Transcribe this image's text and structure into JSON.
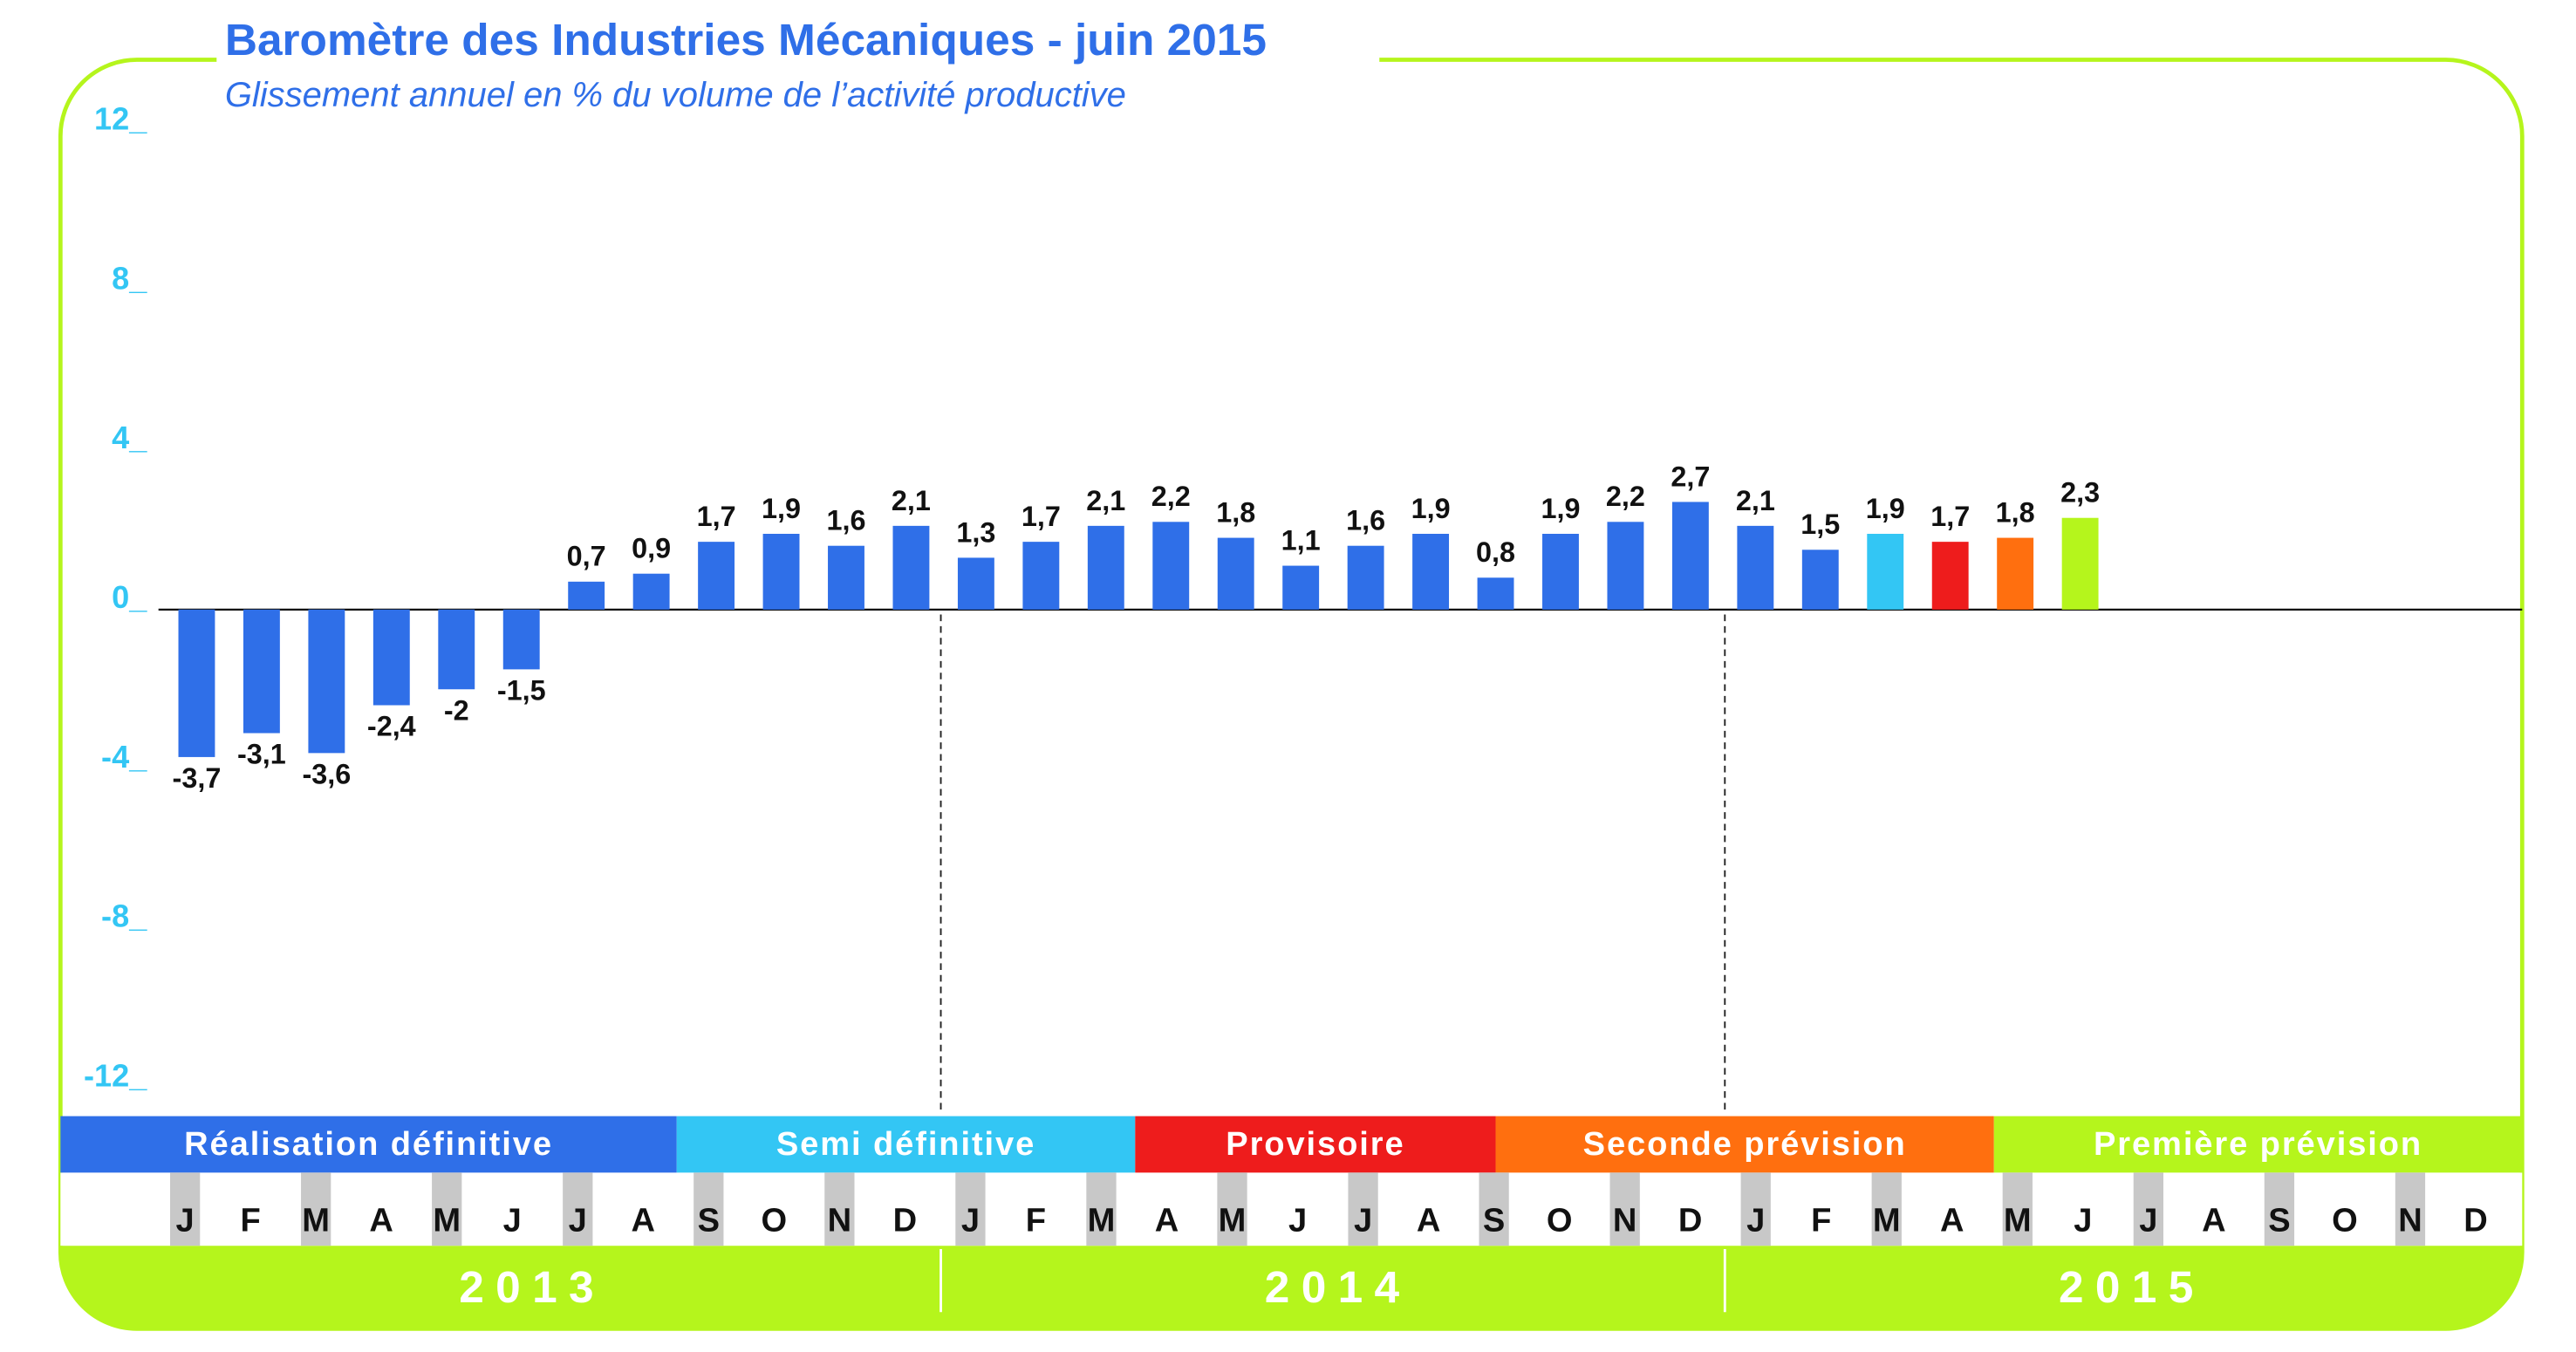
{
  "chart_data": {
    "type": "bar",
    "title": "Baromètre des Industries Mécaniques - juin 2015",
    "subtitle": "Glissement annuel en % du volume de l’activité productive",
    "categories": [
      "J",
      "F",
      "M",
      "A",
      "M",
      "J",
      "J",
      "A",
      "S",
      "O",
      "N",
      "D",
      "J",
      "F",
      "M",
      "A",
      "M",
      "J",
      "J",
      "A",
      "S",
      "O",
      "N",
      "D",
      "J",
      "F",
      "M",
      "A",
      "M",
      "J",
      "J",
      "A",
      "S",
      "O",
      "N",
      "D"
    ],
    "values": [
      -3.7,
      -3.1,
      -3.6,
      -2.4,
      -2,
      -1.5,
      0.7,
      0.9,
      1.7,
      1.9,
      1.6,
      2.1,
      1.3,
      1.7,
      2.1,
      2.2,
      1.8,
      1.1,
      1.6,
      1.9,
      0.8,
      1.9,
      2.2,
      2.7,
      2.1,
      1.5,
      1.9,
      1.7,
      1.8,
      2.3,
      null,
      null,
      null,
      null,
      null,
      null
    ],
    "value_labels": [
      "-3,7",
      "-3,1",
      "-3,6",
      "-2,4",
      "-2",
      "-1,5",
      "0,7",
      "0,9",
      "1,7",
      "1,9",
      "1,6",
      "2,1",
      "1,3",
      "1,7",
      "2,1",
      "2,2",
      "1,8",
      "1,1",
      "1,6",
      "1,9",
      "0,8",
      "1,9",
      "2,2",
      "2,7",
      "2,1",
      "1,5",
      "1,9",
      "1,7",
      "1,8",
      "2,3",
      null,
      null,
      null,
      null,
      null,
      null
    ],
    "colors": [
      "#2f6fe8",
      "#2f6fe8",
      "#2f6fe8",
      "#2f6fe8",
      "#2f6fe8",
      "#2f6fe8",
      "#2f6fe8",
      "#2f6fe8",
      "#2f6fe8",
      "#2f6fe8",
      "#2f6fe8",
      "#2f6fe8",
      "#2f6fe8",
      "#2f6fe8",
      "#2f6fe8",
      "#2f6fe8",
      "#2f6fe8",
      "#2f6fe8",
      "#2f6fe8",
      "#2f6fe8",
      "#2f6fe8",
      "#2f6fe8",
      "#2f6fe8",
      "#2f6fe8",
      "#2f6fe8",
      "#2f6fe8",
      "#33c6f4",
      "#ee1c1c",
      "#ff6f0f",
      "#b5f51c",
      null,
      null,
      null,
      null,
      null,
      null
    ],
    "ylim": [
      -12,
      12
    ],
    "yticks": [
      {
        "value": 12,
        "label": "12_"
      },
      {
        "value": 8,
        "label": "8_"
      },
      {
        "value": 4,
        "label": "4_"
      },
      {
        "value": 0,
        "label": "0_"
      },
      {
        "value": -4,
        "label": "-4_"
      },
      {
        "value": -8,
        "label": "-8_"
      },
      {
        "value": -12,
        "label": "-12_"
      }
    ],
    "phases": [
      {
        "name": "Réalisation définitive",
        "color": "#2f6fe8"
      },
      {
        "name": "Semi définitive",
        "color": "#33c6f4"
      },
      {
        "name": "Provisoire",
        "color": "#ee1c1c"
      },
      {
        "name": "Seconde prévision",
        "color": "#ff6f0f"
      },
      {
        "name": "Première prévision",
        "color": "#b5f51c"
      }
    ],
    "years": [
      "2013",
      "2014",
      "2015"
    ]
  }
}
